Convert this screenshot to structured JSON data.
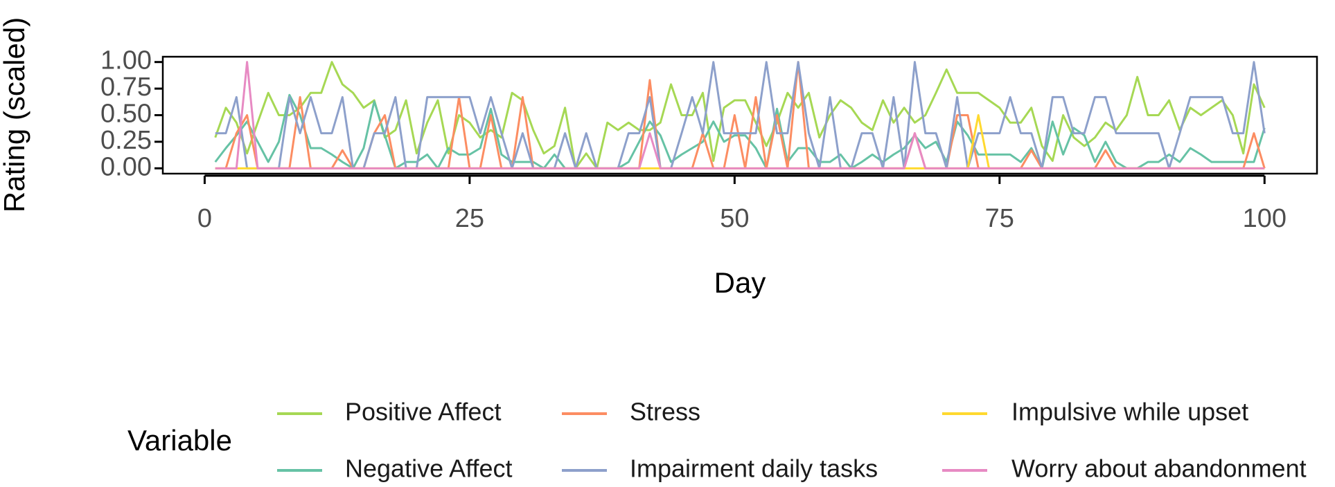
{
  "chart_data": {
    "type": "line",
    "xlabel": "Day",
    "ylabel": "Rating (scaled)",
    "legend_title": "Variable",
    "xlim": [
      -3.95,
      104.95
    ],
    "xticks": [
      0,
      25,
      50,
      75,
      100
    ],
    "ylim": [
      -0.05,
      1.05
    ],
    "yticks": [
      {
        "value": 0,
        "label": "0.00"
      },
      {
        "value": 0.25,
        "label": "0.25"
      },
      {
        "value": 0.5,
        "label": "0.50"
      },
      {
        "value": 0.75,
        "label": "0.75"
      },
      {
        "value": 1,
        "label": "1.00"
      }
    ],
    "x": [
      1,
      2,
      3,
      4,
      5,
      6,
      7,
      8,
      9,
      10,
      11,
      12,
      13,
      14,
      15,
      16,
      17,
      18,
      19,
      20,
      21,
      22,
      23,
      24,
      25,
      26,
      27,
      28,
      29,
      30,
      31,
      32,
      33,
      34,
      35,
      36,
      37,
      38,
      39,
      40,
      41,
      42,
      43,
      44,
      45,
      46,
      47,
      48,
      49,
      50,
      51,
      52,
      53,
      54,
      55,
      56,
      57,
      58,
      59,
      60,
      61,
      62,
      63,
      64,
      65,
      66,
      67,
      68,
      69,
      70,
      71,
      72,
      73,
      74,
      75,
      76,
      77,
      78,
      79,
      80,
      81,
      82,
      83,
      84,
      85,
      86,
      87,
      88,
      89,
      90,
      91,
      92,
      93,
      94,
      95,
      96,
      97,
      98,
      99,
      100
    ],
    "series": [
      {
        "name": "Positive Affect",
        "color": "#a6d854",
        "values": [
          0.29,
          0.57,
          0.43,
          0.14,
          0.43,
          0.71,
          0.5,
          0.5,
          0.57,
          0.71,
          0.71,
          1.0,
          0.79,
          0.71,
          0.57,
          0.64,
          0.29,
          0.36,
          0.64,
          0.14,
          0.43,
          0.64,
          0.14,
          0.5,
          0.43,
          0.29,
          0.36,
          0.29,
          0.71,
          0.64,
          0.36,
          0.14,
          0.21,
          0.57,
          0.0,
          0.14,
          0.0,
          0.43,
          0.36,
          0.43,
          0.36,
          0.36,
          0.43,
          0.79,
          0.5,
          0.5,
          0.71,
          0.07,
          0.57,
          0.64,
          0.64,
          0.43,
          0.21,
          0.43,
          0.71,
          0.57,
          0.71,
          0.29,
          0.5,
          0.64,
          0.57,
          0.43,
          0.36,
          0.64,
          0.43,
          0.57,
          0.43,
          0.5,
          0.71,
          0.93,
          0.71,
          0.71,
          0.71,
          0.64,
          0.57,
          0.43,
          0.43,
          0.57,
          0.21,
          0.07,
          0.5,
          0.29,
          0.21,
          0.29,
          0.43,
          0.36,
          0.5,
          0.86,
          0.5,
          0.5,
          0.64,
          0.36,
          0.57,
          0.5,
          0.57,
          0.64,
          0.5,
          0.14,
          0.79,
          0.57
        ]
      },
      {
        "name": "Negative Affect",
        "color": "#66c2a5",
        "values": [
          0.06,
          0.19,
          0.31,
          0.44,
          0.25,
          0.06,
          0.25,
          0.69,
          0.5,
          0.19,
          0.19,
          0.13,
          0.06,
          0.0,
          0.19,
          0.63,
          0.31,
          0.0,
          0.06,
          0.06,
          0.13,
          0.0,
          0.19,
          0.13,
          0.13,
          0.19,
          0.56,
          0.13,
          0.06,
          0.06,
          0.06,
          0.0,
          0.13,
          0.0,
          0.0,
          0.0,
          0.0,
          0.0,
          0.0,
          0.06,
          0.25,
          0.44,
          0.31,
          0.06,
          0.13,
          0.19,
          0.25,
          0.44,
          0.25,
          0.31,
          0.31,
          0.19,
          0.0,
          0.56,
          0.06,
          0.19,
          0.19,
          0.06,
          0.06,
          0.13,
          0.0,
          0.06,
          0.13,
          0.06,
          0.13,
          0.19,
          0.31,
          0.19,
          0.25,
          0.06,
          0.44,
          0.31,
          0.13,
          0.13,
          0.13,
          0.13,
          0.06,
          0.19,
          0.0,
          0.44,
          0.13,
          0.38,
          0.31,
          0.06,
          0.25,
          0.06,
          0.0,
          0.0,
          0.06,
          0.06,
          0.13,
          0.06,
          0.19,
          0.13,
          0.06,
          0.06,
          0.06,
          0.06,
          0.06,
          0.38
        ]
      },
      {
        "name": "Stress",
        "color": "#fc8d62",
        "values": [
          0,
          0,
          0.33,
          0.5,
          0,
          0,
          0,
          0,
          0.67,
          0,
          0,
          0,
          0.17,
          0,
          0,
          0.33,
          0.5,
          0,
          0,
          0,
          0,
          0,
          0,
          0.67,
          0,
          0,
          0.5,
          0,
          0,
          0.67,
          0,
          0,
          0,
          0,
          0,
          0,
          0,
          0,
          0,
          0,
          0,
          0.83,
          0,
          0,
          0,
          0,
          0.33,
          0,
          0,
          0.5,
          0,
          0.67,
          0,
          0.5,
          0,
          1.0,
          0,
          0,
          0,
          0,
          0,
          0,
          0,
          0,
          0,
          0,
          0.33,
          0,
          0,
          0,
          0.5,
          0.5,
          0,
          0,
          0,
          0,
          0,
          0.17,
          0,
          0,
          0,
          0,
          0,
          0,
          0.17,
          0,
          0,
          0,
          0,
          0,
          0,
          0,
          0,
          0,
          0,
          0,
          0,
          0,
          0.33,
          0
        ]
      },
      {
        "name": "Impairment daily tasks",
        "color": "#8da0cb",
        "values": [
          0.33,
          0.33,
          0.67,
          0,
          0,
          0,
          0,
          0.67,
          0.33,
          0.67,
          0.33,
          0.33,
          0.67,
          0,
          0,
          0.33,
          0.33,
          0.67,
          0,
          0,
          0.67,
          0.67,
          0.67,
          0.67,
          0.67,
          0.33,
          0.67,
          0.33,
          0,
          0.33,
          0,
          0,
          0,
          0.33,
          0,
          0.33,
          0,
          0,
          0,
          0.33,
          0.33,
          0.67,
          0,
          0,
          0.33,
          0.67,
          0.33,
          1.0,
          0.33,
          0.33,
          0.33,
          0.33,
          1.0,
          0.33,
          0.33,
          1.0,
          0.33,
          0,
          0.67,
          0,
          0,
          0.33,
          0.33,
          0,
          0.67,
          0,
          1.0,
          0.33,
          0.33,
          0,
          0.67,
          0,
          0.33,
          0.33,
          0.33,
          0.67,
          0.33,
          0.33,
          0,
          0.67,
          0.67,
          0.33,
          0.33,
          0.67,
          0.67,
          0.33,
          0.33,
          0.33,
          0.33,
          0.33,
          0,
          0.33,
          0.67,
          0.67,
          0.67,
          0.67,
          0.33,
          0.33,
          1.0,
          0.33
        ]
      },
      {
        "name": "Impulsive while upset",
        "color": "#ffd92f",
        "values": [
          0,
          0,
          0,
          0,
          0,
          0,
          0,
          0,
          0,
          0,
          0,
          0,
          0,
          0,
          0,
          0,
          0,
          0,
          0,
          0,
          0,
          0,
          0,
          0,
          0,
          0,
          0,
          0,
          0,
          0,
          0,
          0,
          0,
          0,
          0,
          0,
          0,
          0,
          0,
          0,
          0,
          0,
          0,
          0,
          0,
          0,
          0,
          0,
          0,
          0,
          0,
          0,
          0,
          0,
          0,
          0,
          0,
          0,
          0,
          0,
          0,
          0,
          0,
          0,
          0,
          0,
          0,
          0,
          0,
          0,
          0,
          0,
          0.5,
          0,
          0,
          0,
          0,
          0,
          0,
          0,
          0,
          0,
          0,
          0,
          0,
          0,
          0,
          0,
          0,
          0,
          0,
          0,
          0,
          0,
          0,
          0,
          0,
          0,
          0,
          0
        ]
      },
      {
        "name": "Worry about abandonment",
        "color": "#e78ac3",
        "values": [
          0,
          0,
          0,
          1.0,
          0,
          0,
          0,
          0,
          0,
          0,
          0,
          0,
          0,
          0,
          0,
          0,
          0,
          0,
          0,
          0,
          0,
          0,
          0,
          0,
          0,
          0,
          0,
          0,
          0,
          0,
          0,
          0,
          0,
          0,
          0,
          0,
          0,
          0,
          0,
          0,
          0,
          0.33,
          0,
          0,
          0,
          0,
          0,
          0,
          0,
          0,
          0,
          0,
          0,
          0,
          0,
          0,
          0,
          0,
          0,
          0,
          0,
          0,
          0,
          0,
          0,
          0,
          0.33,
          0,
          0,
          0,
          0,
          0,
          0,
          0,
          0,
          0,
          0,
          0,
          0,
          0,
          0,
          0,
          0,
          0,
          0,
          0,
          0,
          0,
          0,
          0,
          0,
          0,
          0,
          0,
          0,
          0,
          0,
          0,
          0,
          0
        ]
      }
    ]
  }
}
